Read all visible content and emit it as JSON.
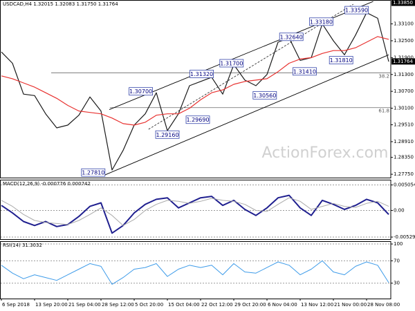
{
  "chart_data": [
    {
      "type": "line",
      "title": "USDCAD,H4  1.32015 1.32083 1.31750 1.31764",
      "watermark": "ActionForex.com",
      "xlim": [
        0,
        35
      ],
      "ylim": [
        1.2763,
        1.3395
      ],
      "yticks": [
        {
          "value": 1.331,
          "label": "1.33100"
        },
        {
          "value": 1.325,
          "label": "1.32500"
        },
        {
          "value": 1.319,
          "label": "1.31900"
        },
        {
          "value": 1.313,
          "label": "1.31300"
        },
        {
          "value": 1.307,
          "label": "1.30700"
        },
        {
          "value": 1.301,
          "label": "1.30100"
        },
        {
          "value": 1.2951,
          "label": "1.29510"
        },
        {
          "value": 1.2891,
          "label": "1.28910"
        },
        {
          "value": 1.2835,
          "label": "1.28350"
        },
        {
          "value": 1.2775,
          "label": "1.27750"
        }
      ],
      "marker_levels": [
        {
          "value": 1.3385,
          "label": "1.33850"
        },
        {
          "value": 1.31764,
          "label": "1.31764"
        }
      ],
      "series": [
        {
          "color": "#1a1a1a",
          "values": [
            1.321,
            1.317,
            1.306,
            1.3055,
            1.299,
            1.294,
            1.295,
            1.2985,
            1.305,
            1.3,
            1.279,
            1.286,
            1.295,
            1.299,
            1.3065,
            1.293,
            1.299,
            1.309,
            1.3105,
            1.312,
            1.306,
            1.3165,
            1.311,
            1.309,
            1.313,
            1.3245,
            1.326,
            1.318,
            1.319,
            1.331,
            1.325,
            1.32,
            1.327,
            1.335,
            1.333,
            1.3176
          ]
        },
        {
          "color": "#e8312f",
          "values": [
            1.3125,
            1.3115,
            1.31,
            1.3085,
            1.3065,
            1.3045,
            1.302,
            1.3,
            1.2995,
            1.299,
            1.2975,
            1.2955,
            1.295,
            1.296,
            1.2985,
            1.299,
            1.299,
            1.301,
            1.304,
            1.3065,
            1.3075,
            1.3095,
            1.3105,
            1.311,
            1.3115,
            1.314,
            1.317,
            1.3185,
            1.319,
            1.3205,
            1.3215,
            1.3215,
            1.3225,
            1.3245,
            1.3265,
            1.3255
          ]
        }
      ],
      "trendlines": [
        {
          "color": "#000000",
          "dash": false,
          "from": [
            9.75,
            1.3005
          ],
          "to": [
            33.6,
            1.339
          ]
        },
        {
          "color": "#000000",
          "dash": false,
          "from": [
            9.2,
            1.277
          ],
          "to": [
            35,
            1.32
          ]
        },
        {
          "color": "#333333",
          "dash": true,
          "from": [
            13.3,
            1.2935
          ],
          "to": [
            31.8,
            1.338
          ]
        }
      ],
      "fib_levels": [
        {
          "label": "38.2",
          "value": 1.3136,
          "start": 4.5
        },
        {
          "label": "61.8",
          "value": 1.3012,
          "start": 9.8
        }
      ],
      "annotations": [
        {
          "label": "1.27810",
          "x": 8.3,
          "value": 1.2781
        },
        {
          "label": "1.29160",
          "x": 15,
          "value": 1.2916
        },
        {
          "label": "1.29690",
          "x": 17.75,
          "value": 1.2969
        },
        {
          "label": "1.30700",
          "x": 12.6,
          "value": 1.307
        },
        {
          "label": "1.31320",
          "x": 18.1,
          "value": 1.3132
        },
        {
          "label": "1.31700",
          "x": 20.8,
          "value": 1.317
        },
        {
          "label": "1.30560",
          "x": 23.8,
          "value": 1.3056
        },
        {
          "label": "1.31410",
          "x": 27.4,
          "value": 1.3141
        },
        {
          "label": "1.32640",
          "x": 26.2,
          "value": 1.3264
        },
        {
          "label": "1.33180",
          "x": 28.9,
          "value": 1.3318
        },
        {
          "label": "1.31810",
          "x": 30.7,
          "value": 1.3181
        },
        {
          "label": "1.33590",
          "x": 32.1,
          "value": 1.3359
        }
      ]
    },
    {
      "type": "line",
      "title": "MACD(12,26,9) -0.000776 0.000742",
      "xlim": [
        0,
        35
      ],
      "ylim": [
        -0.0057,
        0.0061
      ],
      "yticks": [
        0.005054,
        {
          "value": 0,
          "label": "0.00"
        },
        -0.005294
      ],
      "series": [
        {
          "color": "#1f1f8f",
          "width": 2,
          "values": [
            0.001,
            -0.0005,
            -0.0022,
            -0.003,
            -0.0022,
            -0.0032,
            -0.0028,
            -0.0012,
            0.0008,
            0.0015,
            -0.0045,
            -0.003,
            -0.0005,
            0.0012,
            0.0022,
            0.0025,
            0.0005,
            0.0015,
            0.0025,
            0.0028,
            0.001,
            0.002,
            0.0002,
            -0.001,
            0.0005,
            0.0025,
            0.003,
            0.0005,
            -0.001,
            0.002,
            0.0012,
            0.0002,
            0.001,
            0.0022,
            0.0015,
            -0.0008
          ]
        },
        {
          "color": "#aaaaaa",
          "width": 1,
          "values": [
            0.002,
            0.0008,
            -0.0008,
            -0.002,
            -0.0024,
            -0.0026,
            -0.0028,
            -0.002,
            -0.0008,
            0.0005,
            -0.001,
            -0.003,
            -0.0018,
            0.0,
            0.0012,
            0.002,
            0.0018,
            0.0014,
            0.0018,
            0.0024,
            0.002,
            0.0018,
            0.0012,
            0.0,
            -0.0002,
            0.0012,
            0.0025,
            0.0018,
            0.0002,
            0.0008,
            0.0014,
            0.0008,
            0.0006,
            0.0014,
            0.0018,
            0.0008
          ]
        }
      ]
    },
    {
      "type": "line",
      "title": "RSI(14) 31.3032",
      "xlim": [
        0,
        35
      ],
      "ylim": [
        2.5,
        105
      ],
      "yticks": [
        100,
        70,
        30
      ],
      "series": [
        {
          "color": "#3d9be9",
          "width": 1,
          "values": [
            62,
            48,
            38,
            45,
            40,
            35,
            45,
            55,
            65,
            60,
            28,
            40,
            55,
            58,
            65,
            42,
            55,
            62,
            58,
            62,
            45,
            65,
            50,
            48,
            58,
            68,
            62,
            45,
            55,
            70,
            50,
            45,
            60,
            68,
            62,
            31
          ]
        }
      ],
      "xticks": [
        {
          "value": 0,
          "label": "6 Sep 2018"
        },
        {
          "value": 3,
          "label": "13 Sep 20:00"
        },
        {
          "value": 6,
          "label": "21 Sep 04:00"
        },
        {
          "value": 9,
          "label": "28 Sep 12:00"
        },
        {
          "value": 12,
          "label": "5 Oct 20:00"
        },
        {
          "value": 15,
          "label": "15 Oct 04:00"
        },
        {
          "value": 18,
          "label": "22 Oct 12:00"
        },
        {
          "value": 21,
          "label": "29 Oct 20:00"
        },
        {
          "value": 24,
          "label": "6 Nov 04:00"
        },
        {
          "value": 27,
          "label": "13 Nov 12:00"
        },
        {
          "value": 30,
          "label": "21 Nov 00:00"
        },
        {
          "value": 33,
          "label": "28 Nov 08:00"
        }
      ]
    }
  ]
}
